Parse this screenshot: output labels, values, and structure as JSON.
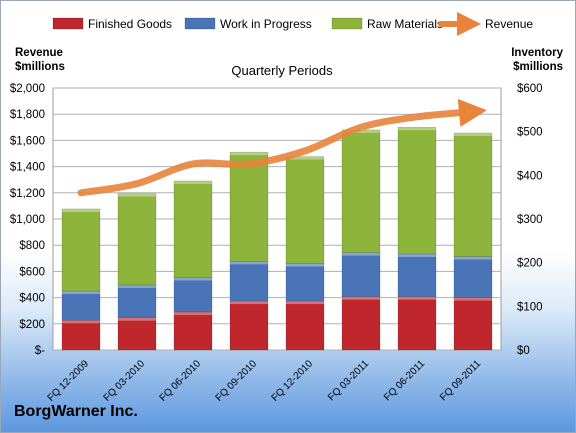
{
  "chart_data": {
    "type": "bar",
    "subtitle": "Quarterly Periods",
    "company": "BorgWarner Inc.",
    "left_axis_title": [
      "Revenue",
      "$millions"
    ],
    "right_axis_title": [
      "Inventory",
      "$millions"
    ],
    "left_ylim": [
      0,
      2000
    ],
    "right_ylim": [
      0,
      600
    ],
    "left_ticks": [
      "$-",
      "$200",
      "$400",
      "$600",
      "$800",
      "$1,000",
      "$1,200",
      "$1,400",
      "$1,600",
      "$1,800",
      "$2,000"
    ],
    "right_ticks": [
      "$0",
      "$100",
      "$200",
      "$300",
      "$400",
      "$500",
      "$600"
    ],
    "legend_position": "top",
    "grid": true,
    "categories": [
      "FQ 12-2009",
      "FQ 03-2010",
      "FQ 06-2010",
      "FQ 09-2010",
      "FQ 12-2010",
      "FQ 03-2011",
      "FQ 06-2011",
      "FQ 09-2011"
    ],
    "series": [
      {
        "name": "Finished Goods",
        "kind": "stacked-bar",
        "axis": "right",
        "color": "#c0272d",
        "values": [
          68,
          74,
          87,
          112,
          112,
          122,
          122,
          120
        ]
      },
      {
        "name": "Work in Progress",
        "kind": "stacked-bar",
        "axis": "right",
        "color": "#4a74b8",
        "values": [
          67,
          75,
          79,
          91,
          86,
          101,
          98,
          94
        ]
      },
      {
        "name": "Raw Materials",
        "kind": "stacked-bar",
        "axis": "right",
        "color": "#8db53c",
        "values": [
          188,
          209,
          221,
          250,
          245,
          281,
          290,
          283
        ]
      },
      {
        "name": "Revenue",
        "kind": "line",
        "axis": "left",
        "color": "#e8833a",
        "values": [
          1200,
          1270,
          1420,
          1420,
          1520,
          1700,
          1780,
          1820
        ]
      }
    ]
  }
}
